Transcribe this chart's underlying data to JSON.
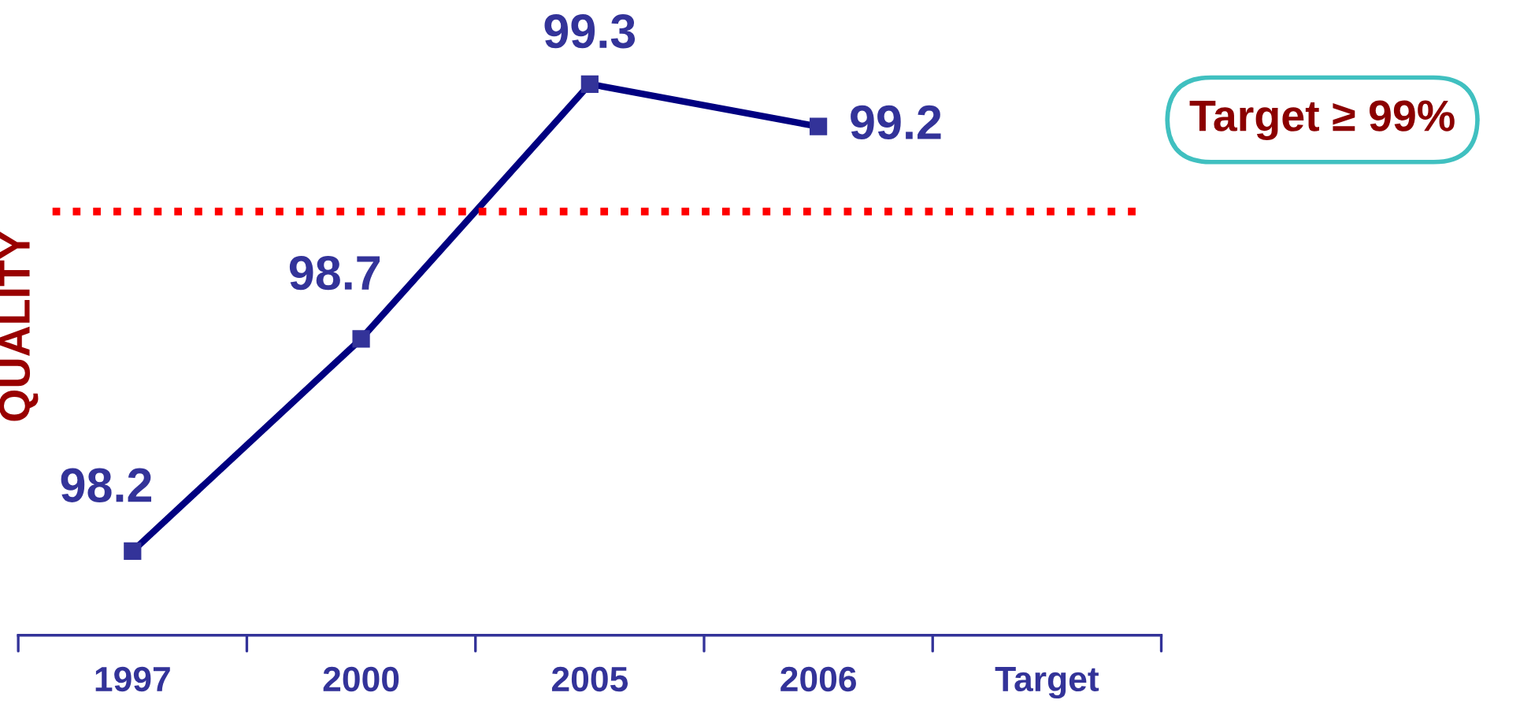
{
  "chart_data": {
    "type": "line",
    "ylabel": "QUALITY",
    "categories": [
      "1997",
      "2000",
      "2005",
      "2006",
      "Target"
    ],
    "series": [
      {
        "color": "#000080",
        "values": [
          98.2,
          98.7,
          99.3,
          99.2,
          null
        ]
      }
    ],
    "tick_labels": "x",
    "data_labels": true,
    "marker": "square",
    "line_style": "solid",
    "grid": false,
    "legend": false,
    "ref_lines": [
      {
        "axis": "y",
        "value": 99,
        "label": "Target ≥ 99%",
        "color": "#ff0000",
        "line_style": "dotted"
      }
    ]
  }
}
